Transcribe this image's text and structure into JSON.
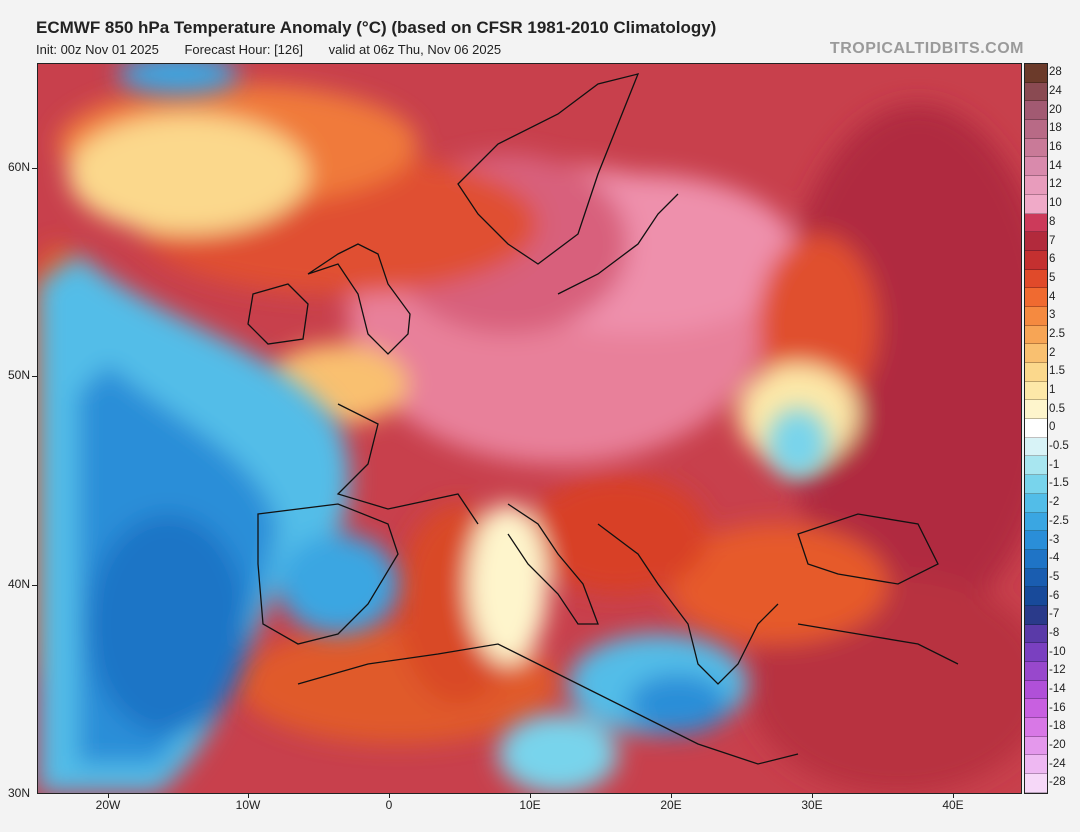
{
  "header": {
    "title": "ECMWF 850 hPa Temperature Anomaly (°C) (based on CFSR 1981-2010 Climatology)",
    "init": "Init: 00z Nov 01 2025",
    "forecast_hour": "Forecast Hour: [126]",
    "valid": "valid at 06z Thu, Nov 06 2025",
    "brand": "TROPICALTIDBITS.COM"
  },
  "axes": {
    "lat_labels": [
      "60N",
      "50N",
      "40N",
      "30N"
    ],
    "lon_labels": [
      "20W",
      "10W",
      "0",
      "10E",
      "20E",
      "30E",
      "40E"
    ]
  },
  "colorbar": {
    "labels": [
      "28",
      "24",
      "20",
      "18",
      "16",
      "14",
      "12",
      "10",
      "8",
      "7",
      "6",
      "5",
      "4",
      "3",
      "2.5",
      "2",
      "1.5",
      "1",
      "0.5",
      "0",
      "-0.5",
      "-1",
      "-1.5",
      "-2",
      "-2.5",
      "-3",
      "-4",
      "-5",
      "-6",
      "-7",
      "-8",
      "-10",
      "-12",
      "-14",
      "-16",
      "-18",
      "-20",
      "-24",
      "-28"
    ],
    "colors": [
      "#6b3a2a",
      "#8a4a52",
      "#a25a72",
      "#b86a86",
      "#c97a98",
      "#d98aac",
      "#e89cbc",
      "#f0aac8",
      "#cc3a5a",
      "#b22a3c",
      "#c43030",
      "#e04a2a",
      "#f06a30",
      "#f58a40",
      "#f7a555",
      "#f9c070",
      "#fbd88c",
      "#fde8a8",
      "#fef5cc",
      "#ffffff",
      "#d8f3f7",
      "#a8e6f0",
      "#78d4ec",
      "#52bde8",
      "#3aa6e2",
      "#2a8ed8",
      "#1f74c6",
      "#1a5db0",
      "#184a9a",
      "#2a3a8a",
      "#5a3aa8",
      "#7a40c0",
      "#9848cc",
      "#b050d8",
      "#c860e0",
      "#d878e6",
      "#e498ec",
      "#eeb8f2",
      "#f6d8f8"
    ]
  }
}
